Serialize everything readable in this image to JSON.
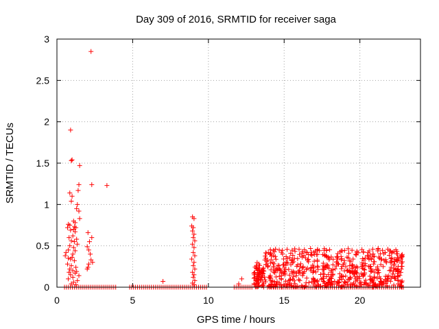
{
  "chart_data": {
    "type": "scatter",
    "title": "Day 309 of 2016, SRMTID for receiver saga",
    "xlabel": "GPS time / hours",
    "ylabel": "SRMTID / TECUs",
    "xlim": [
      0,
      24
    ],
    "ylim": [
      0,
      3
    ],
    "xticks": [
      "0",
      "5",
      "10",
      "15",
      "20"
    ],
    "xtick_values": [
      0,
      5,
      10,
      15,
      20
    ],
    "yticks": [
      "0",
      "0.5",
      "1",
      "1.5",
      "2",
      "2.5",
      "3"
    ],
    "ytick_values": [
      0,
      0.5,
      1,
      1.5,
      2,
      2.5,
      3
    ],
    "grid": true,
    "marker": "+",
    "color": "#ff0000",
    "series": [
      {
        "name": "SRMTID",
        "points": [
          [
            2.25,
            2.85
          ],
          [
            0.9,
            1.9
          ],
          [
            1.0,
            1.54
          ],
          [
            0.95,
            1.53
          ],
          [
            1.5,
            1.47
          ],
          [
            2.3,
            1.24
          ],
          [
            3.3,
            1.23
          ],
          [
            1.45,
            1.24
          ],
          [
            0.85,
            1.14
          ],
          [
            1.0,
            1.1
          ],
          [
            0.95,
            1.04
          ],
          [
            1.4,
            1.17
          ],
          [
            1.35,
            1.0
          ],
          [
            1.3,
            0.95
          ],
          [
            1.45,
            0.92
          ],
          [
            1.5,
            0.83
          ],
          [
            1.1,
            0.8
          ],
          [
            1.2,
            0.78
          ],
          [
            0.75,
            0.76
          ],
          [
            0.85,
            0.75
          ],
          [
            1.15,
            0.73
          ],
          [
            1.25,
            0.72
          ],
          [
            0.7,
            0.72
          ],
          [
            1.1,
            0.7
          ],
          [
            0.9,
            0.69
          ],
          [
            1.2,
            0.67
          ],
          [
            2.05,
            0.66
          ],
          [
            1.05,
            0.62
          ],
          [
            0.8,
            0.6
          ],
          [
            2.3,
            0.6
          ],
          [
            1.3,
            0.58
          ],
          [
            0.95,
            0.56
          ],
          [
            1.15,
            0.55
          ],
          [
            2.15,
            0.55
          ],
          [
            1.35,
            0.52
          ],
          [
            0.85,
            0.5
          ],
          [
            2.0,
            0.49
          ],
          [
            1.1,
            0.48
          ],
          [
            0.75,
            0.45
          ],
          [
            2.1,
            0.45
          ],
          [
            1.2,
            0.44
          ],
          [
            0.6,
            0.42
          ],
          [
            1.05,
            0.4
          ],
          [
            2.2,
            0.4
          ],
          [
            0.55,
            0.38
          ],
          [
            1.0,
            0.36
          ],
          [
            0.75,
            0.35
          ],
          [
            0.9,
            0.34
          ],
          [
            2.25,
            0.33
          ],
          [
            1.15,
            0.32
          ],
          [
            2.35,
            0.3
          ],
          [
            0.7,
            0.28
          ],
          [
            2.1,
            0.28
          ],
          [
            0.95,
            0.26
          ],
          [
            1.25,
            0.24
          ],
          [
            2.05,
            0.24
          ],
          [
            0.85,
            0.22
          ],
          [
            2.0,
            0.22
          ],
          [
            1.05,
            0.2
          ],
          [
            1.3,
            0.19
          ],
          [
            0.8,
            0.18
          ],
          [
            1.2,
            0.17
          ],
          [
            0.9,
            0.15
          ],
          [
            1.45,
            0.14
          ],
          [
            1.05,
            0.12
          ],
          [
            0.75,
            0.1
          ],
          [
            1.35,
            0.08
          ],
          [
            1.1,
            0.06
          ],
          [
            0.95,
            0.04
          ],
          [
            1.25,
            0.03
          ],
          [
            8.95,
            0.85
          ],
          [
            9.05,
            0.83
          ],
          [
            8.9,
            0.74
          ],
          [
            9.0,
            0.72
          ],
          [
            8.95,
            0.68
          ],
          [
            9.05,
            0.64
          ],
          [
            9.0,
            0.6
          ],
          [
            9.1,
            0.56
          ],
          [
            8.95,
            0.52
          ],
          [
            9.05,
            0.48
          ],
          [
            9.0,
            0.42
          ],
          [
            9.1,
            0.38
          ],
          [
            8.9,
            0.34
          ],
          [
            9.05,
            0.3
          ],
          [
            9.0,
            0.26
          ],
          [
            9.1,
            0.22
          ],
          [
            8.95,
            0.18
          ],
          [
            9.05,
            0.15
          ],
          [
            9.0,
            0.12
          ],
          [
            9.1,
            0.08
          ],
          [
            8.95,
            0.05
          ],
          [
            9.05,
            0.03
          ],
          [
            7.0,
            0.07
          ],
          [
            12.2,
            0.1
          ],
          [
            12.0,
            0.04
          ]
        ],
        "dense_segments": [
          {
            "x_start": 13.0,
            "x_end": 13.7,
            "y_min": 0.0,
            "y_max": 0.3,
            "count": 70
          },
          {
            "x_start": 13.7,
            "x_end": 22.8,
            "y_min": 0.0,
            "y_max": 0.47,
            "count": 600
          }
        ],
        "zero_runs": [
          {
            "x_start": 0.5,
            "x_end": 4.0,
            "y": 0
          },
          {
            "x_start": 4.8,
            "x_end": 10.0,
            "y": 0
          },
          {
            "x_start": 11.7,
            "x_end": 13.0,
            "y": 0
          },
          {
            "x_start": 13.9,
            "x_end": 22.9,
            "y": 0
          }
        ]
      }
    ]
  }
}
